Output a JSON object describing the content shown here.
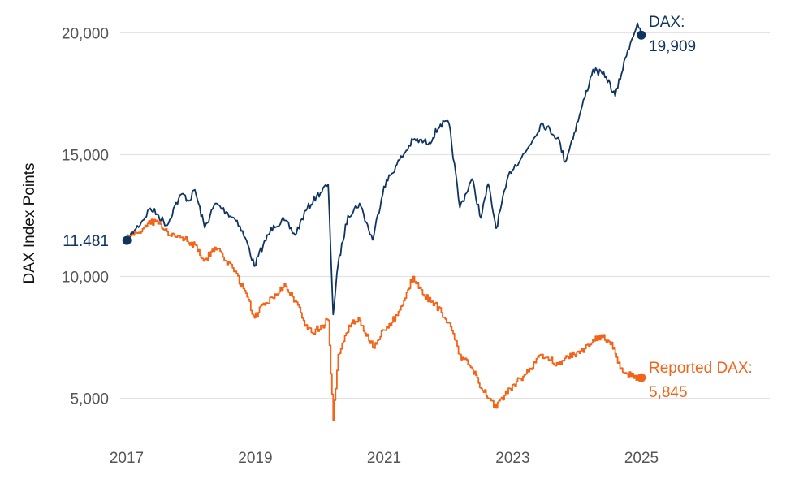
{
  "chart_data": {
    "type": "line",
    "ylabel": "DAX Index Points",
    "xlabel": "",
    "x_ticks": [
      "2017",
      "2019",
      "2021",
      "2023",
      "2025"
    ],
    "y_ticks": [
      "5,000",
      "10,000",
      "15,000",
      "20,000"
    ],
    "ylim": [
      3000,
      20700
    ],
    "xlim": [
      "2017-01-01",
      "2026-10-01"
    ],
    "grid": "horizontal",
    "start_label": "11.481",
    "colors": {
      "dax": "#0f3460",
      "reported": "#f26418",
      "grid": "#e3e3e3"
    },
    "series": [
      {
        "key": "dax",
        "end_label_name": "DAX:",
        "end_label_value": "19,909",
        "points": [
          [
            "2017-01-02",
            11481
          ],
          [
            "2017-02-15",
            11900
          ],
          [
            "2017-04-01",
            12300
          ],
          [
            "2017-05-15",
            12800
          ],
          [
            "2017-07-01",
            12500
          ],
          [
            "2017-08-20",
            12100
          ],
          [
            "2017-10-01",
            12900
          ],
          [
            "2017-11-15",
            13400
          ],
          [
            "2017-12-20",
            13100
          ],
          [
            "2018-01-23",
            13560
          ],
          [
            "2018-03-20",
            12000
          ],
          [
            "2018-05-20",
            13000
          ],
          [
            "2018-07-20",
            12650
          ],
          [
            "2018-09-20",
            12300
          ],
          [
            "2018-11-20",
            11300
          ],
          [
            "2018-12-27",
            10420
          ],
          [
            "2019-02-15",
            11300
          ],
          [
            "2019-04-15",
            12100
          ],
          [
            "2019-06-15",
            12300
          ],
          [
            "2019-08-15",
            11700
          ],
          [
            "2019-10-15",
            12700
          ],
          [
            "2019-12-15",
            13300
          ],
          [
            "2020-02-19",
            13780
          ],
          [
            "2020-03-18",
            8440
          ],
          [
            "2020-04-15",
            10500
          ],
          [
            "2020-06-10",
            12500
          ],
          [
            "2020-08-15",
            13000
          ],
          [
            "2020-10-28",
            11500
          ],
          [
            "2020-12-31",
            13700
          ],
          [
            "2021-03-15",
            14600
          ],
          [
            "2021-06-15",
            15600
          ],
          [
            "2021-09-15",
            15500
          ],
          [
            "2021-11-17",
            16250
          ],
          [
            "2022-01-05",
            16270
          ],
          [
            "2022-03-07",
            12830
          ],
          [
            "2022-05-15",
            14000
          ],
          [
            "2022-07-05",
            12400
          ],
          [
            "2022-08-15",
            13800
          ],
          [
            "2022-09-29",
            11980
          ],
          [
            "2022-12-15",
            14300
          ],
          [
            "2023-03-15",
            15100
          ],
          [
            "2023-06-15",
            16300
          ],
          [
            "2023-09-15",
            15700
          ],
          [
            "2023-10-26",
            14700
          ],
          [
            "2024-01-15",
            16600
          ],
          [
            "2024-04-01",
            18500
          ],
          [
            "2024-06-15",
            18200
          ],
          [
            "2024-08-05",
            17400
          ],
          [
            "2024-10-15",
            19300
          ],
          [
            "2024-12-09",
            20400
          ],
          [
            "2024-12-31",
            19909
          ]
        ]
      },
      {
        "key": "reported",
        "end_label_name": "Reported DAX:",
        "end_label_value": "5,845",
        "points": [
          [
            "2017-01-02",
            11481
          ],
          [
            "2017-04-15",
            12100
          ],
          [
            "2017-06-20",
            12300
          ],
          [
            "2017-09-01",
            11700
          ],
          [
            "2017-11-01",
            11600
          ],
          [
            "2018-01-01",
            11400
          ],
          [
            "2018-03-20",
            10700
          ],
          [
            "2018-05-15",
            11200
          ],
          [
            "2018-07-01",
            10800
          ],
          [
            "2018-09-01",
            10200
          ],
          [
            "2018-10-25",
            9500
          ],
          [
            "2018-12-27",
            8300
          ],
          [
            "2019-02-15",
            8900
          ],
          [
            "2019-04-15",
            9100
          ],
          [
            "2019-06-15",
            9700
          ],
          [
            "2019-08-15",
            9000
          ],
          [
            "2019-10-01",
            8200
          ],
          [
            "2019-11-15",
            7700
          ],
          [
            "2020-01-15",
            8000
          ],
          [
            "2020-02-19",
            8200
          ],
          [
            "2020-03-18",
            4100
          ],
          [
            "2020-04-15",
            6800
          ],
          [
            "2020-06-15",
            8000
          ],
          [
            "2020-08-15",
            8200
          ],
          [
            "2020-10-28",
            7100
          ],
          [
            "2020-12-31",
            7800
          ],
          [
            "2021-03-15",
            8400
          ],
          [
            "2021-06-15",
            10000
          ],
          [
            "2021-08-15",
            9200
          ],
          [
            "2021-10-15",
            8900
          ],
          [
            "2022-01-05",
            8100
          ],
          [
            "2022-03-07",
            6800
          ],
          [
            "2022-05-15",
            6200
          ],
          [
            "2022-07-05",
            5400
          ],
          [
            "2022-09-29",
            4600
          ],
          [
            "2022-12-15",
            5400
          ],
          [
            "2023-03-15",
            6000
          ],
          [
            "2023-06-15",
            6800
          ],
          [
            "2023-09-15",
            6400
          ],
          [
            "2023-12-15",
            6800
          ],
          [
            "2024-03-15",
            7200
          ],
          [
            "2024-05-15",
            7600
          ],
          [
            "2024-07-15",
            7300
          ],
          [
            "2024-09-01",
            6200
          ],
          [
            "2024-11-01",
            5900
          ],
          [
            "2024-12-31",
            5845
          ]
        ]
      }
    ]
  }
}
